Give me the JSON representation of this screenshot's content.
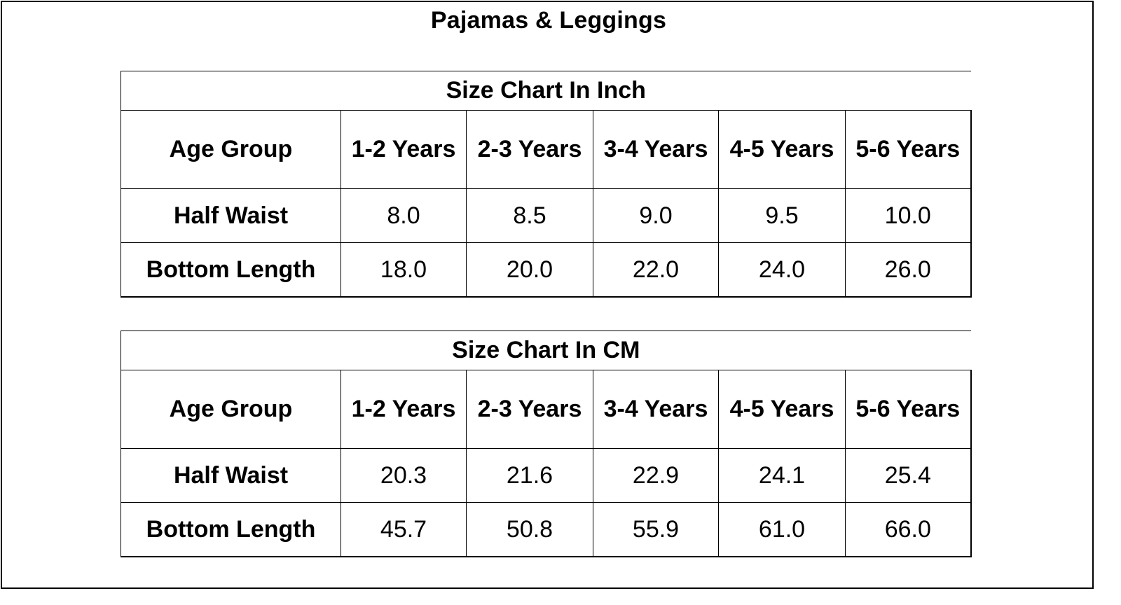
{
  "page_title": "Pajamas & Leggings",
  "tables": [
    {
      "caption": "Size Chart In Inch",
      "header_label": "Age Group",
      "columns": [
        "1-2 Years",
        "2-3 Years",
        "3-4 Years",
        "4-5 Years",
        "5-6 Years"
      ],
      "rows": [
        {
          "label": "Half Waist",
          "values": [
            "8.0",
            "8.5",
            "9.0",
            "9.5",
            "10.0"
          ]
        },
        {
          "label": "Bottom Length",
          "values": [
            "18.0",
            "20.0",
            "22.0",
            "24.0",
            "26.0"
          ]
        }
      ]
    },
    {
      "caption": "Size Chart In CM",
      "header_label": "Age Group",
      "columns": [
        "1-2 Years",
        "2-3 Years",
        "3-4 Years",
        "4-5 Years",
        "5-6 Years"
      ],
      "rows": [
        {
          "label": "Half Waist",
          "values": [
            "20.3",
            "21.6",
            "22.9",
            "24.1",
            "25.4"
          ]
        },
        {
          "label": "Bottom Length",
          "values": [
            "45.7",
            "50.8",
            "55.9",
            "61.0",
            "66.0"
          ]
        }
      ]
    }
  ]
}
